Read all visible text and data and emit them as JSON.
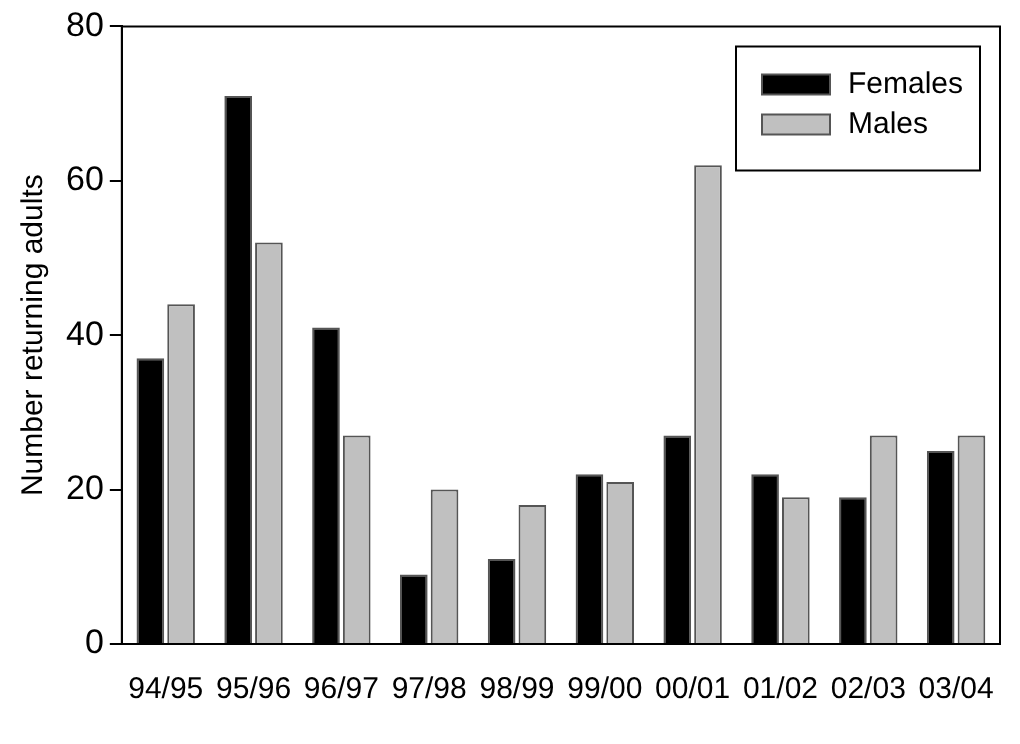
{
  "chart_data": {
    "type": "bar",
    "ylabel": "Number returning adults",
    "categories": [
      "94/95",
      "95/96",
      "96/97",
      "97/98",
      "98/99",
      "99/00",
      "00/01",
      "01/02",
      "02/03",
      "03/04"
    ],
    "series": [
      {
        "name": "Females",
        "color": "#000000",
        "values": [
          37,
          71,
          41,
          9,
          11,
          22,
          27,
          22,
          19,
          25
        ]
      },
      {
        "name": "Males",
        "color": "#c0c0c0",
        "values": [
          44,
          52,
          27,
          20,
          18,
          21,
          62,
          19,
          27,
          27
        ]
      }
    ],
    "ylim": [
      0,
      80
    ],
    "yticks": [
      0,
      20,
      40,
      60,
      80
    ],
    "grid": false,
    "legend": "top right"
  }
}
